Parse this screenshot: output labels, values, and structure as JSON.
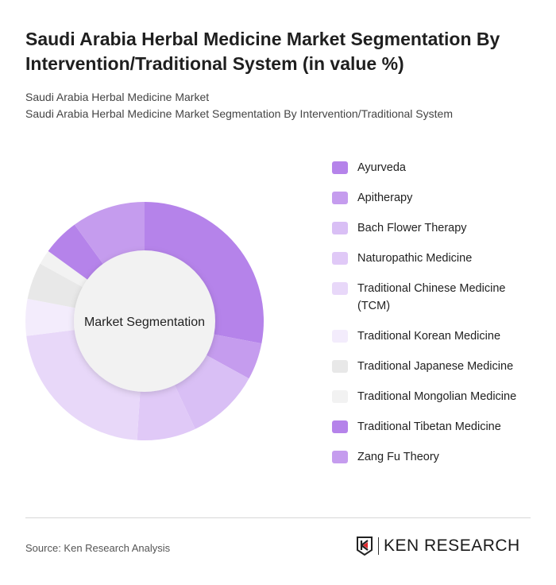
{
  "header": {
    "title": "Saudi Arabia Herbal Medicine Market Segmentation By Intervention/Traditional System (in value %)",
    "subtitle_1": "Saudi Arabia Herbal Medicine Market",
    "subtitle_2": "Saudi Arabia Herbal Medicine Market Segmentation By Intervention/Traditional System"
  },
  "chart_data": {
    "type": "pie",
    "variant": "donut",
    "center_label": "Market Segmentation",
    "legend_position": "right",
    "categories": [
      "Ayurveda",
      "Apitherapy",
      "Bach Flower Therapy",
      "Naturopathic Medicine",
      "Traditional Chinese Medicine (TCM)",
      "Traditional Korean Medicine",
      "Traditional Japanese Medicine",
      "Traditional Mongolian Medicine",
      "Traditional Tibetan Medicine",
      "Zang Fu Theory"
    ],
    "values": [
      28,
      5,
      10,
      8,
      22,
      5,
      5,
      2,
      5,
      10
    ],
    "colors": [
      "#b583ea",
      "#c59cee",
      "#d9bff5",
      "#e0c9f7",
      "#e8d8f9",
      "#f3ecfc",
      "#e8e8e8",
      "#f2f2f2",
      "#b583ea",
      "#c59cee"
    ]
  },
  "footer": {
    "source": "Source: Ken Research Analysis",
    "logo_text": "KEN RESEARCH"
  }
}
